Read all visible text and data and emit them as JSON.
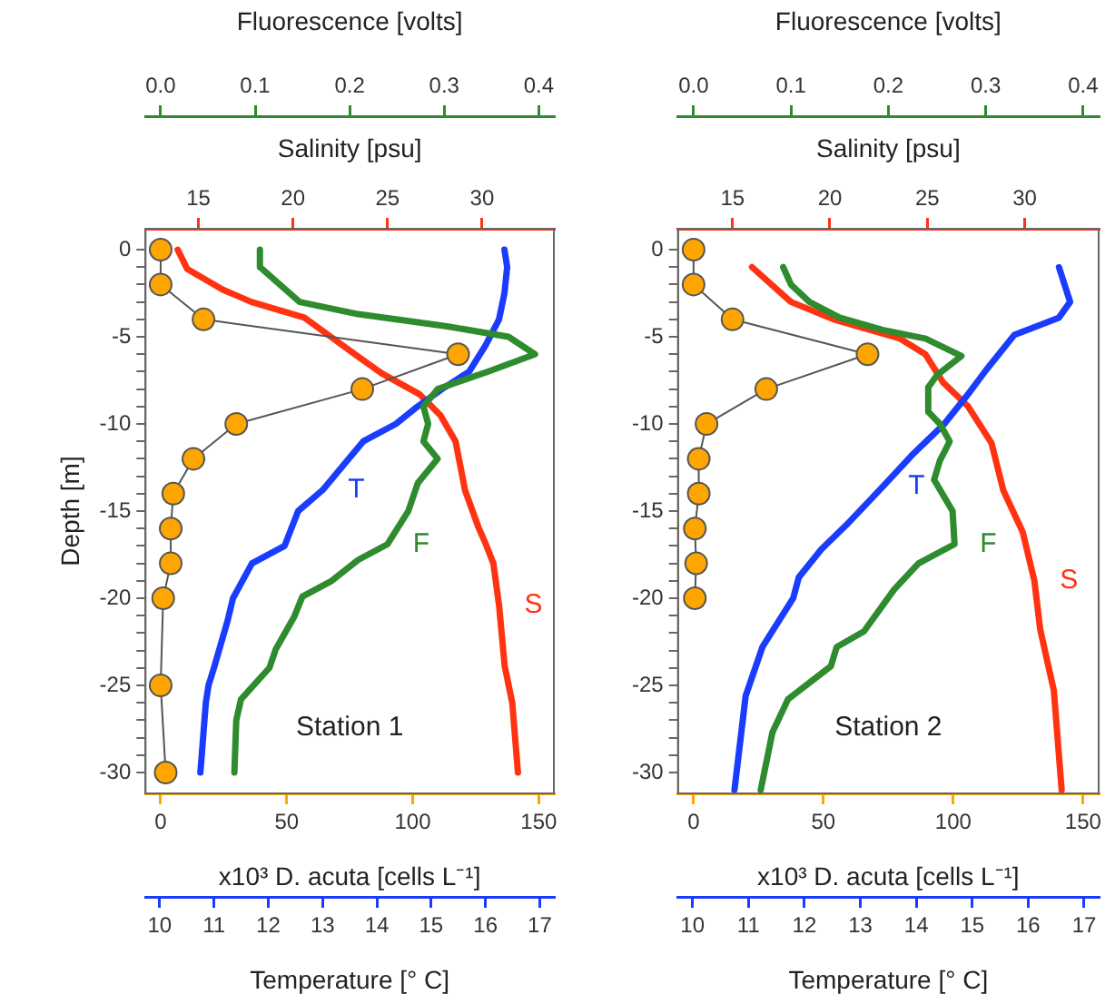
{
  "chart_data": [
    {
      "type": "line",
      "ylabel": "Depth [m]",
      "xlabel": "x10³ D. acuta [cells L⁻¹]",
      "x2label": "Fluorescence [volts]",
      "xlim": [
        -6,
        156
      ],
      "xticks": [
        0,
        50,
        100,
        150
      ],
      "x2lim": [
        -0.016,
        0.416
      ],
      "x2ticks": [
        {
          "value": 0,
          "label": "0.0"
        },
        0.1,
        0.2,
        0.3,
        0.4
      ],
      "ylim": [
        -31.2,
        1.2
      ],
      "yticks": [
        0,
        {
          "value": -1,
          "label": null
        },
        {
          "value": -2,
          "label": null
        },
        {
          "value": -3,
          "label": null
        },
        {
          "value": -4,
          "label": null
        },
        -5,
        {
          "value": -6,
          "label": null
        },
        {
          "value": -7,
          "label": null
        },
        {
          "value": -8,
          "label": null
        },
        {
          "value": -9,
          "label": null
        },
        -10,
        {
          "value": -11,
          "label": null
        },
        {
          "value": -12,
          "label": null
        },
        {
          "value": -13,
          "label": null
        },
        {
          "value": -14,
          "label": null
        },
        -15,
        {
          "value": -16,
          "label": null
        },
        {
          "value": -17,
          "label": null
        },
        {
          "value": -18,
          "label": null
        },
        {
          "value": -19,
          "label": null
        },
        -20,
        {
          "value": -21,
          "label": null
        },
        {
          "value": -22,
          "label": null
        },
        {
          "value": -23,
          "label": null
        },
        {
          "value": -24,
          "label": null
        },
        -25,
        {
          "value": -26,
          "label": null
        },
        {
          "value": -27,
          "label": null
        },
        {
          "value": -28,
          "label": null
        },
        {
          "value": -29,
          "label": null
        },
        -30
      ],
      "grid": false,
      "legend": false,
      "marker": "none",
      "annotations": [
        "Station 1"
      ],
      "series": [
        {
          "color": "#ffa500",
          "marker": "circle",
          "x": [
            0,
            0,
            17,
            118,
            80,
            30,
            13,
            5,
            4,
            4,
            1,
            0,
            2
          ],
          "values": [
            0,
            -2,
            -4,
            -6,
            -8,
            -10,
            -12,
            -14,
            -16,
            -18,
            -20,
            -25,
            -30
          ]
        },
        {
          "name": "F",
          "color": "#2e8b2e",
          "axis": "x2",
          "x": [
            0.105,
            0.105,
            0.147,
            0.209,
            0.303,
            0.368,
            0.396,
            0.346,
            0.293,
            0.278,
            0.283,
            0.278,
            0.293,
            0.272,
            0.262,
            0.24,
            0.209,
            0.181,
            0.15,
            0.141,
            0.122,
            0.115,
            0.085,
            0.08,
            0.078
          ],
          "values": [
            0,
            -1,
            -3,
            -3.7,
            -4.4,
            -5,
            -6,
            -7,
            -8,
            -9,
            -10,
            -11,
            -12,
            -13.4,
            -15,
            -16.9,
            -17.8,
            -19,
            -19.9,
            -21.1,
            -22.9,
            -24,
            -25.8,
            -27,
            -30
          ]
        }
      ]
    },
    {
      "type": "line",
      "xlabel": "Temperature [° C]",
      "x2label": "Salinity [psu]",
      "xlim": [
        9.74,
        17.26
      ],
      "xticks": [
        10,
        11,
        12,
        13,
        14,
        15,
        16,
        17
      ],
      "x2lim": [
        12.2,
        33.8
      ],
      "x2ticks": [
        15,
        20,
        25,
        30
      ],
      "ylim": [
        -31.2,
        1.2
      ],
      "tick_labels": "x",
      "grid": false,
      "legend": false,
      "marker": "none",
      "series": [
        {
          "name": "T",
          "color": "#1a3cff",
          "x": [
            16.35,
            16.4,
            16.35,
            16.25,
            16,
            15.7,
            15.2,
            14.75,
            14.35,
            13.75,
            13,
            12.55,
            12.3,
            11.7,
            11.35,
            11.25,
            11,
            10.9,
            10.85,
            10.75
          ],
          "values": [
            0,
            -1,
            -2.5,
            -4,
            -5.5,
            -7,
            -8,
            -9,
            -10,
            -11,
            -13.8,
            -15,
            -17,
            -18,
            -20,
            -21.3,
            -24,
            -25,
            -26,
            -30
          ]
        },
        {
          "name": "S",
          "color": "#ff3311",
          "axis": "x2",
          "x": [
            13.9,
            14.4,
            16.3,
            17.8,
            20.6,
            22,
            23.4,
            24.7,
            26.7,
            27.8,
            28.6,
            29.1,
            29.8,
            30.2,
            30.6,
            30.9,
            31.2,
            31.6,
            31.9
          ],
          "values": [
            0,
            -1.1,
            -2.3,
            -3,
            -3.9,
            -5,
            -6.1,
            -7.1,
            -8.3,
            -9.5,
            -11,
            -13.8,
            -15.9,
            -16.9,
            -18,
            -20.4,
            -23.9,
            -26,
            -30
          ]
        }
      ]
    },
    {
      "type": "line",
      "xlabel": "x10³ D. acuta [cells L⁻¹]",
      "x2label": "Fluorescence [volts]",
      "xlim": [
        -6,
        156
      ],
      "xticks": [
        0,
        50,
        100,
        150
      ],
      "x2lim": [
        -0.016,
        0.416
      ],
      "x2ticks": [
        {
          "value": 0,
          "label": "0.0"
        },
        0.1,
        0.2,
        0.3,
        0.4
      ],
      "ylim": [
        -31.2,
        1.2
      ],
      "yticks": [
        0,
        {
          "value": -1,
          "label": null
        },
        {
          "value": -2,
          "label": null
        },
        {
          "value": -3,
          "label": null
        },
        {
          "value": -4,
          "label": null
        },
        -5,
        {
          "value": -6,
          "label": null
        },
        {
          "value": -7,
          "label": null
        },
        {
          "value": -8,
          "label": null
        },
        {
          "value": -9,
          "label": null
        },
        -10,
        {
          "value": -11,
          "label": null
        },
        {
          "value": -12,
          "label": null
        },
        {
          "value": -13,
          "label": null
        },
        {
          "value": -14,
          "label": null
        },
        -15,
        {
          "value": -16,
          "label": null
        },
        {
          "value": -17,
          "label": null
        },
        {
          "value": -18,
          "label": null
        },
        {
          "value": -19,
          "label": null
        },
        -20,
        {
          "value": -21,
          "label": null
        },
        {
          "value": -22,
          "label": null
        },
        {
          "value": -23,
          "label": null
        },
        {
          "value": -24,
          "label": null
        },
        -25,
        {
          "value": -26,
          "label": null
        },
        {
          "value": -27,
          "label": null
        },
        {
          "value": -28,
          "label": null
        },
        {
          "value": -29,
          "label": null
        },
        -30
      ],
      "grid": false,
      "legend": false,
      "marker": "none",
      "annotations": [
        "Station 2"
      ],
      "series": [
        {
          "color": "#ffa500",
          "marker": "circle",
          "x": [
            0,
            0,
            15,
            67,
            28,
            5,
            2,
            2,
            0.5,
            1,
            0.5
          ],
          "values": [
            0,
            -2,
            -4,
            -6,
            -8,
            -10,
            -12,
            -14,
            -16,
            -18,
            -20
          ]
        },
        {
          "name": "F",
          "color": "#2e8b2e",
          "axis": "x2",
          "x": [
            0.092,
            0.1,
            0.119,
            0.15,
            0.194,
            0.238,
            0.275,
            0.25,
            0.241,
            0.241,
            0.253,
            0.263,
            0.253,
            0.247,
            0.266,
            0.268,
            0.231,
            0.206,
            0.175,
            0.147,
            0.141,
            0.097,
            0.081,
            0.069
          ],
          "values": [
            -1,
            -2,
            -3,
            -3.9,
            -4.6,
            -5.1,
            -6.1,
            -7.2,
            -7.9,
            -9.3,
            -10,
            -11,
            -12.1,
            -13.2,
            -15,
            -16.9,
            -18,
            -19.5,
            -21.9,
            -22.8,
            -23.9,
            -25.8,
            -27.7,
            -31
          ]
        }
      ]
    },
    {
      "type": "line",
      "xlabel": "Temperature [° C]",
      "x2label": "Salinity [psu]",
      "xlim": [
        9.74,
        17.26
      ],
      "xticks": [
        10,
        11,
        12,
        13,
        14,
        15,
        16,
        17
      ],
      "x2lim": [
        12.2,
        33.8
      ],
      "x2ticks": [
        15,
        20,
        25,
        30
      ],
      "ylim": [
        -31.2,
        1.2
      ],
      "tick_labels": "x",
      "grid": false,
      "legend": false,
      "marker": "none",
      "series": [
        {
          "name": "T",
          "color": "#1a3cff",
          "x": [
            16.55,
            16.75,
            16.55,
            15.75,
            15.25,
            14.9,
            14.5,
            13.95,
            13.4,
            12.75,
            12.3,
            11.9,
            11.8,
            11.25,
            10.95,
            10.75
          ],
          "values": [
            -1,
            -3,
            -3.9,
            -4.9,
            -6.9,
            -8.4,
            -10,
            -11.7,
            -13.6,
            -15.8,
            -17.2,
            -18.8,
            -20,
            -22.8,
            -25.6,
            -31
          ]
        },
        {
          "name": "S",
          "color": "#ff3311",
          "axis": "x2",
          "x": [
            16,
            18,
            20.2,
            23.6,
            24.9,
            25.8,
            27.1,
            28.3,
            28.9,
            29.9,
            30.5,
            30.8,
            31.5,
            31.9
          ],
          "values": [
            -1,
            -3,
            -4,
            -5.1,
            -6,
            -7.6,
            -9,
            -11.1,
            -13.8,
            -16.2,
            -19,
            -21.8,
            -25.3,
            -31
          ]
        }
      ]
    }
  ]
}
